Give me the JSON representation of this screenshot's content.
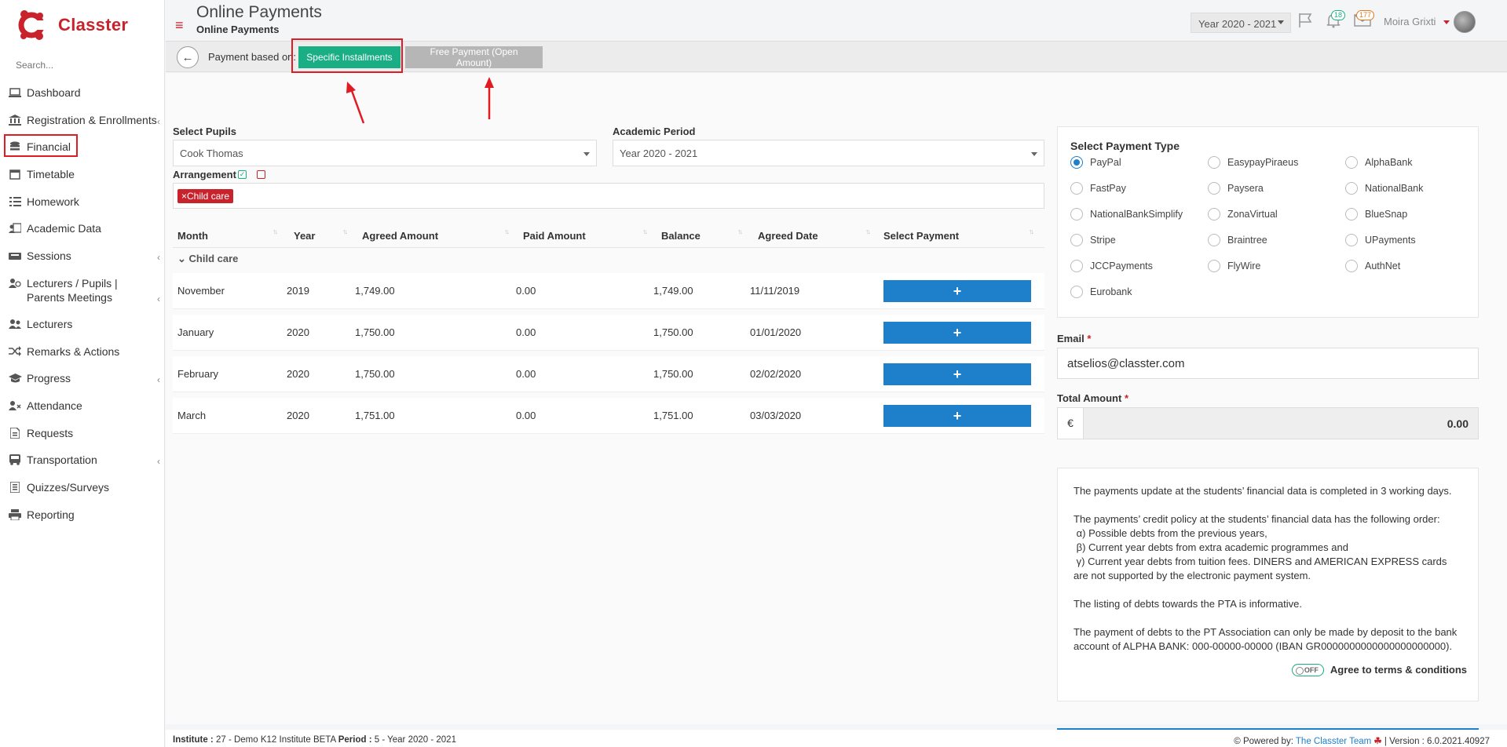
{
  "app": {
    "brand": "Classter"
  },
  "sidebar": {
    "search_placeholder": "Search...",
    "items": [
      {
        "label": "Dashboard",
        "icon": "laptop-icon"
      },
      {
        "label": "Registration & Enrollments",
        "icon": "institution-icon"
      },
      {
        "label": "Financial",
        "icon": "coins-icon"
      },
      {
        "label": "Timetable",
        "icon": "calendar-icon"
      },
      {
        "label": "Homework",
        "icon": "list-icon"
      },
      {
        "label": "Academic Data",
        "icon": "user-card-icon"
      },
      {
        "label": "Sessions",
        "icon": "sessions-icon"
      },
      {
        "label": "Lecturers / Pupils | Parents Meetings",
        "icon": "users-icon"
      },
      {
        "label": "Lecturers",
        "icon": "users-icon"
      },
      {
        "label": "Remarks & Actions",
        "icon": "shuffle-icon"
      },
      {
        "label": "Progress",
        "icon": "graduation-cap-icon"
      },
      {
        "label": "Attendance",
        "icon": "user-x-icon"
      },
      {
        "label": "Requests",
        "icon": "document-icon"
      },
      {
        "label": "Transportation",
        "icon": "bus-icon"
      },
      {
        "label": "Quizzes/Surveys",
        "icon": "checklist-icon"
      },
      {
        "label": "Reporting",
        "icon": "printer-icon"
      }
    ]
  },
  "header": {
    "title": "Online Payments",
    "subtitle": "Online Payments",
    "year": "Year 2020 - 2021",
    "flag_badge": "",
    "notifications_count": "18",
    "messages_count": "177",
    "user_name": "Moira Grixti"
  },
  "toolbar": {
    "based_on_label": "Payment based on:",
    "specific_installments": "Specific Installments",
    "free_payment": "Free Payment (Open Amount)"
  },
  "form": {
    "select_pupils_label": "Select Pupils",
    "select_pupils_value": "Cook Thomas",
    "academic_period_label": "Academic Period",
    "academic_period_value": "Year 2020 - 2021",
    "arrangement_label": "Arrangement",
    "arrangement_tag": "×Child care"
  },
  "table": {
    "headers": [
      "Month",
      "Year",
      "Agreed Amount",
      "Paid Amount",
      "Balance",
      "Agreed Date",
      "Select Payment"
    ],
    "group": "Child care",
    "rows": [
      {
        "month": "November",
        "year": "2019",
        "agreed": "1,749.00",
        "paid": "0.00",
        "balance": "1,749.00",
        "date": "11/11/2019"
      },
      {
        "month": "January",
        "year": "2020",
        "agreed": "1,750.00",
        "paid": "0.00",
        "balance": "1,750.00",
        "date": "01/01/2020"
      },
      {
        "month": "February",
        "year": "2020",
        "agreed": "1,750.00",
        "paid": "0.00",
        "balance": "1,750.00",
        "date": "02/02/2020"
      },
      {
        "month": "March",
        "year": "2020",
        "agreed": "1,751.00",
        "paid": "0.00",
        "balance": "1,751.00",
        "date": "03/03/2020"
      }
    ],
    "add_label": "+"
  },
  "payment": {
    "title": "Select Payment Type",
    "options": [
      "PayPal",
      "EasypayPiraeus",
      "AlphaBank",
      "FastPay",
      "Paysera",
      "NationalBank",
      "NationalBankSimplify",
      "ZonaVirtual",
      "BlueSnap",
      "Stripe",
      "Braintree",
      "UPayments",
      "JCCPayments",
      "FlyWire",
      "AuthNet",
      "Eurobank"
    ],
    "selected": "PayPal",
    "email_label": "Email",
    "email_value": "atselios@classter.com",
    "total_label": "Total Amount",
    "currency": "€",
    "total_value": "0.00",
    "required_mark": "*"
  },
  "info": {
    "p1": "The payments update at the students’ financial data is completed in 3 working days.",
    "p2": "The payments’ credit policy at the students’ financial data has the following order:",
    "p2a": "α) Possible debts from the previous years,",
    "p2b": "β) Current year debts from extra academic programmes and",
    "p2c": "γ) Current year debts from tuition fees. DINERS and AMERICAN EXPRESS cards are not supported by the electronic payment system.",
    "p3": "The listing of debts towards the PTA is informative.",
    "p4": "The payment of debts to the PT Association can only be made by deposit to the bank account of ALPHA BANK: 000-00000-00000 (IBAN GR0000000000000000000000).",
    "toggle": "OFF",
    "agree": "Agree to terms & conditions"
  },
  "footer": {
    "institute_label": "Institute :",
    "institute_value": "27 - Demo K12 Institute BETA",
    "period_label": "Period :",
    "period_value": "5 - Year 2020 - 2021",
    "powered": "Powered by:",
    "team": "The Classter Team",
    "version": "| Version : 6.0.2021.40927"
  }
}
